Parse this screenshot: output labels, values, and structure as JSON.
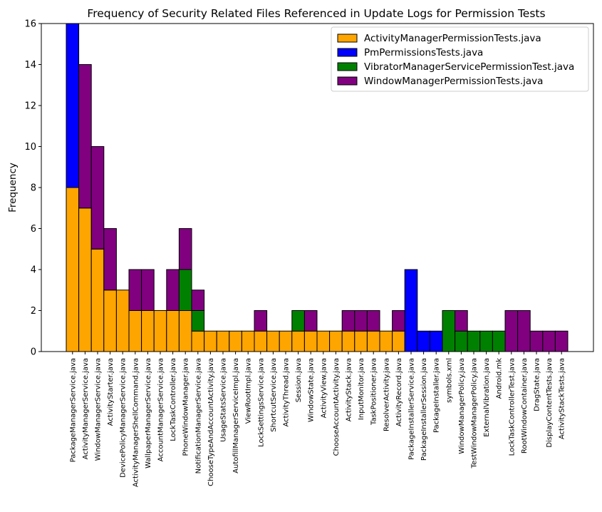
{
  "chart_data": {
    "type": "bar",
    "stacked": true,
    "title": "Frequency of Security Related Files Referenced in Update Logs for Permission Tests",
    "xlabel": "",
    "ylabel": "Frequency",
    "ylim": [
      0,
      16
    ],
    "yticks": [
      0,
      2,
      4,
      6,
      8,
      10,
      12,
      14,
      16
    ],
    "grid": false,
    "legend_position": "top-right",
    "categories": [
      "PackageManagerService.java",
      "ActivityManagerService.java",
      "WindowManagerService.java",
      "ActivityStarter.java",
      "DevicePolicyManagerService.java",
      "ActivityManagerShellCommand.java",
      "WallpaperManagerService.java",
      "AccountManagerService.java",
      "LockTaskController.java",
      "PhoneWindowManager.java",
      "NotificationManagerService.java",
      "ChooseTypeAndAccountActivity.java",
      "UsageStatsService.java",
      "AutofillManagerServiceImpl.java",
      "ViewRootImpl.java",
      "LockSettingsService.java",
      "ShortcutService.java",
      "ActivityThread.java",
      "Session.java",
      "WindowState.java",
      "ActivityView.java",
      "ChooseAccountActivity.java",
      "ActivityStack.java",
      "InputMonitor.java",
      "TaskPositioner.java",
      "ResolverActivity.java",
      "ActivityRecord.java",
      "PackageInstallerService.java",
      "PackageInstallerSession.java",
      "PackageInstaller.java",
      "symbols.xml",
      "WindowManagerPolicy.java",
      "TestWindowManagerPolicy.java",
      "ExternalVibration.java",
      "Android.mk",
      "LockTaskControllerTest.java",
      "RootWindowContainer.java",
      "DragState.java",
      "DisplayContentTests.java",
      "ActivityStackTests.java"
    ],
    "series": [
      {
        "name": "ActivityManagerPermissionTests.java",
        "color": "#ffa500",
        "values": [
          8,
          7,
          5,
          3,
          3,
          2,
          2,
          2,
          2,
          2,
          1,
          1,
          1,
          1,
          1,
          1,
          1,
          1,
          1,
          1,
          1,
          1,
          1,
          1,
          1,
          1,
          1,
          0,
          0,
          0,
          0,
          0,
          0,
          0,
          0,
          0,
          0,
          0,
          0,
          0
        ]
      },
      {
        "name": "PmPermissionsTests.java",
        "color": "#0000ff",
        "values": [
          8,
          0,
          0,
          0,
          0,
          0,
          0,
          0,
          0,
          0,
          0,
          0,
          0,
          0,
          0,
          0,
          0,
          0,
          0,
          0,
          0,
          0,
          0,
          0,
          0,
          0,
          0,
          4,
          1,
          1,
          0,
          0,
          0,
          0,
          0,
          0,
          0,
          0,
          0,
          0
        ]
      },
      {
        "name": "VibratorManagerServicePermissionTest.java",
        "color": "#008000",
        "values": [
          0,
          0,
          0,
          0,
          0,
          0,
          0,
          0,
          0,
          2,
          1,
          0,
          0,
          0,
          0,
          0,
          0,
          0,
          1,
          0,
          0,
          0,
          0,
          0,
          0,
          0,
          0,
          0,
          0,
          0,
          2,
          1,
          1,
          1,
          1,
          0,
          0,
          0,
          0,
          0
        ]
      },
      {
        "name": "WindowManagerPermissionTests.java",
        "color": "#800080",
        "values": [
          0,
          7,
          5,
          3,
          0,
          2,
          2,
          0,
          2,
          2,
          1,
          0,
          0,
          0,
          0,
          1,
          0,
          0,
          0,
          1,
          0,
          0,
          1,
          1,
          1,
          0,
          1,
          0,
          0,
          0,
          0,
          1,
          0,
          0,
          0,
          2,
          2,
          1,
          1,
          1
        ]
      }
    ]
  }
}
